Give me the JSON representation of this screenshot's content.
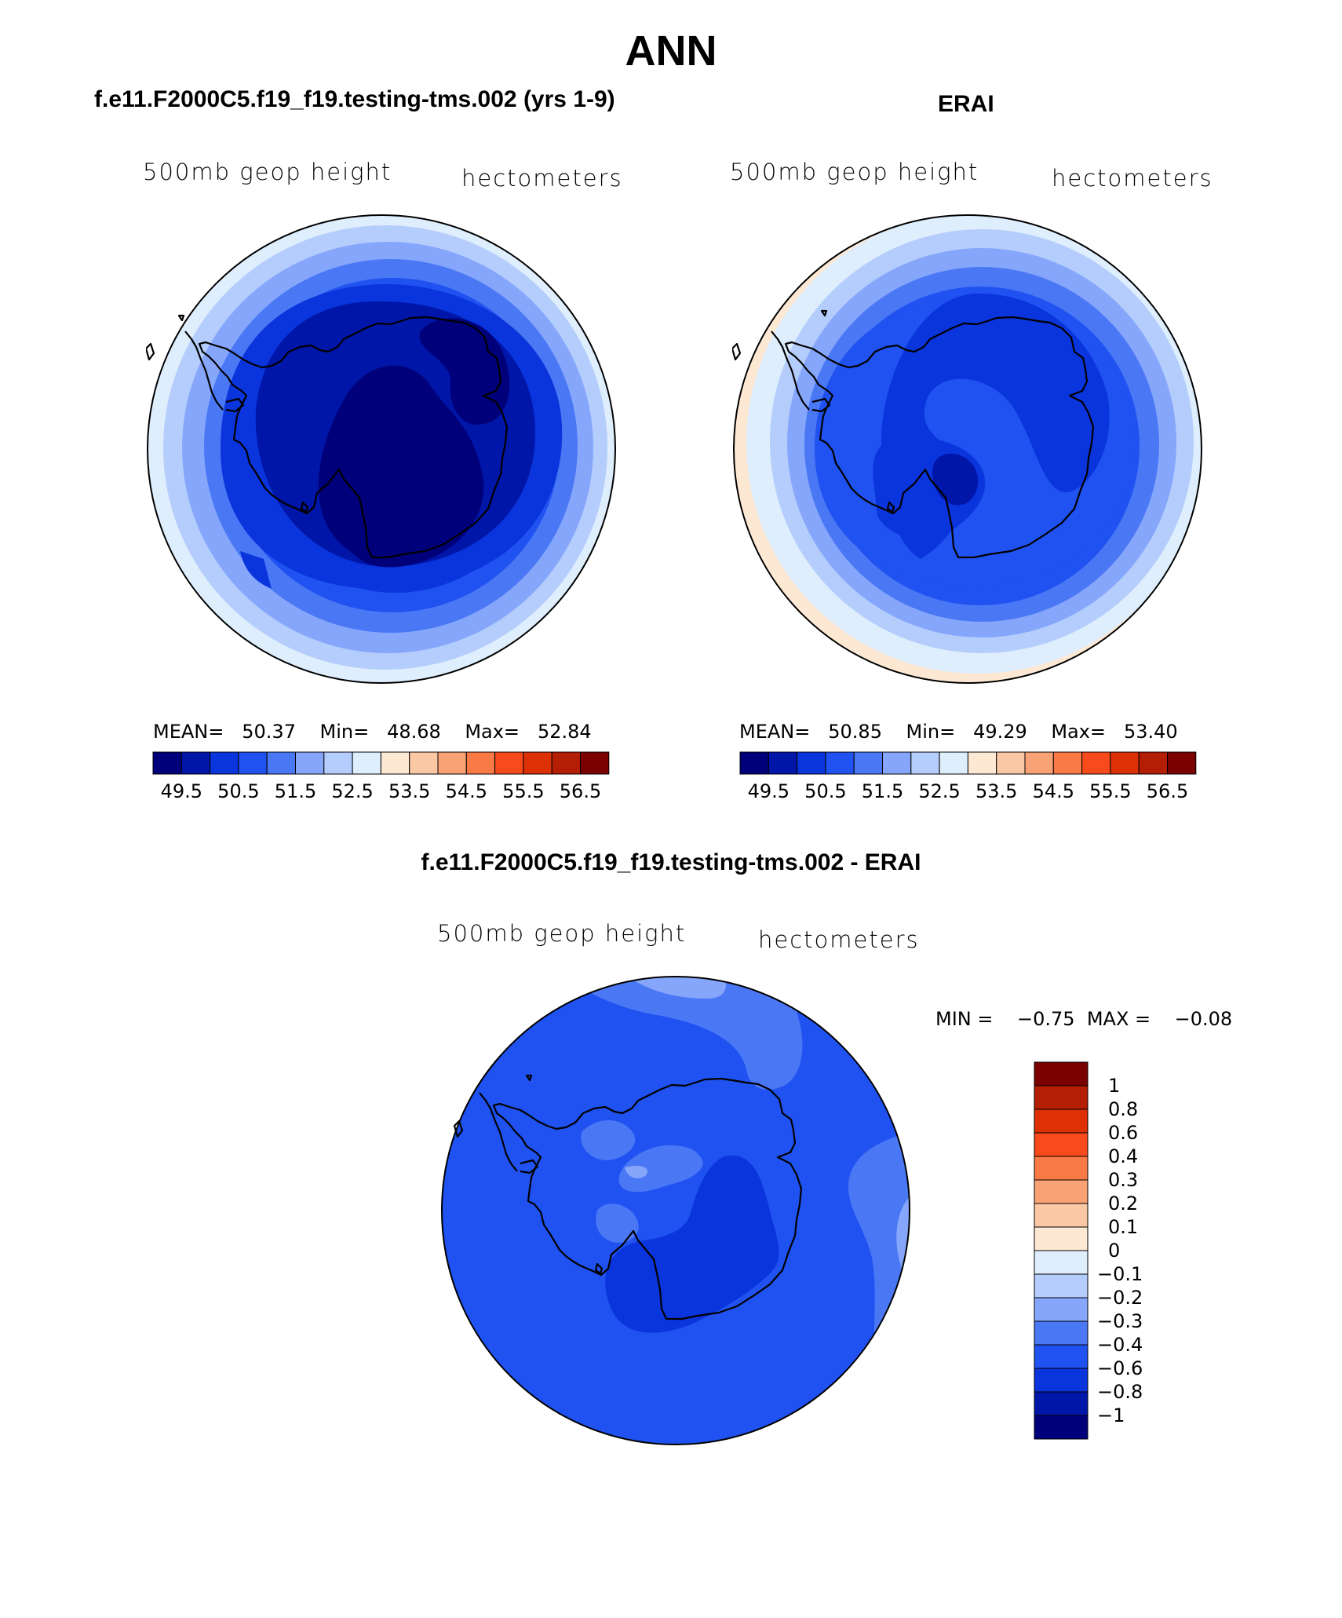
{
  "title": "ANN",
  "panels": {
    "left": {
      "title": "f.e11.F2000C5.f19_f19.testing-tms.002 (yrs 1-9)",
      "variable": "500mb geop height",
      "units": "hectometers",
      "stats": {
        "mean_label": "MEAN=",
        "mean": "50.37",
        "min_label": "Min=",
        "min": "48.68",
        "max_label": "Max=",
        "max": "52.84"
      }
    },
    "right": {
      "title": "ERAI",
      "variable": "500mb geop height",
      "units": "hectometers",
      "stats": {
        "mean_label": "MEAN=",
        "mean": "50.85",
        "min_label": "Min=",
        "min": "49.29",
        "max_label": "Max=",
        "max": "53.40"
      }
    },
    "diff": {
      "title": "f.e11.F2000C5.f19_f19.testing-tms.002 - ERAI",
      "variable": "500mb geop height",
      "units": "hectometers",
      "stats": {
        "min_label": "MIN =",
        "min": "−0.75",
        "max_label": "MAX =",
        "max": "−0.08"
      }
    }
  },
  "colorbar_top": {
    "colors": [
      "#00007a",
      "#0016a8",
      "#0a34dc",
      "#1f52f0",
      "#4a78f5",
      "#85a6fb",
      "#b4cdfc",
      "#dfeefd",
      "#fde8d4",
      "#fbc8a6",
      "#f8a276",
      "#fa7a45",
      "#f94a1c",
      "#dd3105",
      "#b31e05",
      "#7b0000"
    ],
    "tick_labels": [
      "49.5",
      "50.5",
      "51.5",
      "52.5",
      "53.5",
      "54.5",
      "55.5",
      "56.5"
    ]
  },
  "colorbar_diff": {
    "colors_top_to_bottom": [
      "#7b0000",
      "#b31e05",
      "#dd3105",
      "#f94a1c",
      "#fa7a45",
      "#f8a276",
      "#fbc8a6",
      "#fde8d4",
      "#dfeefd",
      "#b4cdfc",
      "#85a6fb",
      "#4a78f5",
      "#1f52f0",
      "#0a34dc",
      "#0016a8",
      "#00007a"
    ],
    "tick_labels_top_to_bottom": [
      "1",
      "0.8",
      "0.6",
      "0.4",
      "0.3",
      "0.2",
      "0.1",
      "0",
      "−0.1",
      "−0.2",
      "−0.3",
      "−0.4",
      "−0.6",
      "−0.8",
      "−1"
    ]
  },
  "chart_data": [
    {
      "type": "heatmap",
      "projection": "south polar stereographic",
      "title": "f.e11.F2000C5.f19_f19.testing-tms.002 (yrs 1-9)",
      "field": "500mb geop height",
      "units": "hectometers",
      "mean": 50.37,
      "min": 48.68,
      "max": 52.84,
      "contour_levels": [
        49.5,
        50,
        50.5,
        51,
        51.5,
        52,
        52.5,
        53,
        53.5,
        54,
        54.5,
        55,
        55.5,
        56,
        56.5
      ]
    },
    {
      "type": "heatmap",
      "projection": "south polar stereographic",
      "title": "ERAI",
      "field": "500mb geop height",
      "units": "hectometers",
      "mean": 50.85,
      "min": 49.29,
      "max": 53.4,
      "contour_levels": [
        49.5,
        50,
        50.5,
        51,
        51.5,
        52,
        52.5,
        53,
        53.5,
        54,
        54.5,
        55,
        55.5,
        56,
        56.5
      ]
    },
    {
      "type": "heatmap",
      "projection": "south polar stereographic",
      "title": "f.e11.F2000C5.f19_f19.testing-tms.002 - ERAI",
      "field": "500mb geop height",
      "units": "hectometers",
      "min": -0.75,
      "max": -0.08,
      "contour_levels": [
        -1,
        -0.8,
        -0.6,
        -0.4,
        -0.3,
        -0.2,
        -0.1,
        0,
        0.1,
        0.2,
        0.3,
        0.4,
        0.6,
        0.8,
        1
      ]
    }
  ]
}
